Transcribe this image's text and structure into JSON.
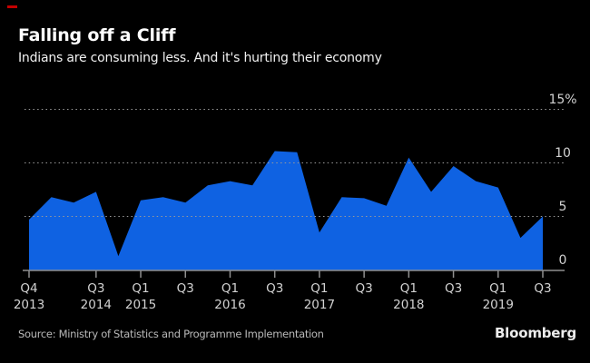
{
  "header": {
    "title": "Falling off a Cliff",
    "subtitle": "Indians are consuming less. And it's hurting their economy"
  },
  "footer": {
    "source": "Source: Ministry of Statistics and Programme Implementation",
    "brand": "Bloomberg"
  },
  "colors": {
    "background": "#000000",
    "area_blue": "#0f62e2",
    "grid_gray": "#9a9a9a",
    "axis_gray": "#8f8f8f",
    "label_gray": "#d2d2d2",
    "accent_red": "#c40000"
  },
  "chart_data": {
    "type": "area",
    "title": "Falling off a Cliff",
    "subtitle": "Indians are consuming less. And it's hurting their economy",
    "ylabel": "",
    "xlabel": "",
    "unit": "%",
    "ylim": [
      0,
      15
    ],
    "grid": "dotted-horizontal",
    "legend_position": "none",
    "x": [
      "Q4 2013",
      "Q1 2014",
      "Q2 2014",
      "Q3 2014",
      "Q4 2014",
      "Q1 2015",
      "Q2 2015",
      "Q3 2015",
      "Q4 2015",
      "Q1 2016",
      "Q2 2016",
      "Q3 2016",
      "Q4 2016",
      "Q1 2017",
      "Q2 2017",
      "Q3 2017",
      "Q4 2017",
      "Q1 2018",
      "Q2 2018",
      "Q3 2018",
      "Q4 2018",
      "Q1 2019",
      "Q2 2019",
      "Q3 2019"
    ],
    "values": [
      4.7,
      6.8,
      6.3,
      7.3,
      1.3,
      6.5,
      6.8,
      6.3,
      7.9,
      8.3,
      7.9,
      11.1,
      11.0,
      3.5,
      6.8,
      6.7,
      6.0,
      10.5,
      7.3,
      9.7,
      8.3,
      7.7,
      3.0,
      5.0
    ],
    "yticks": [
      {
        "label": "15%",
        "value": 15
      },
      {
        "label": "10",
        "value": 10
      },
      {
        "label": "5",
        "value": 5
      },
      {
        "label": "0",
        "value": 0
      }
    ],
    "xticks": [
      {
        "index": 0,
        "quarter": "Q4",
        "year": "2013"
      },
      {
        "index": 3,
        "quarter": "Q3",
        "year": "2014"
      },
      {
        "index": 5,
        "quarter": "Q1",
        "year": "2015"
      },
      {
        "index": 7,
        "quarter": "Q3",
        "year": ""
      },
      {
        "index": 9,
        "quarter": "Q1",
        "year": "2016"
      },
      {
        "index": 11,
        "quarter": "Q3",
        "year": ""
      },
      {
        "index": 13,
        "quarter": "Q1",
        "year": "2017"
      },
      {
        "index": 15,
        "quarter": "Q3",
        "year": ""
      },
      {
        "index": 17,
        "quarter": "Q1",
        "year": "2018"
      },
      {
        "index": 19,
        "quarter": "Q3",
        "year": ""
      },
      {
        "index": 21,
        "quarter": "Q1",
        "year": "2019"
      },
      {
        "index": 23,
        "quarter": "Q3",
        "year": ""
      }
    ]
  }
}
